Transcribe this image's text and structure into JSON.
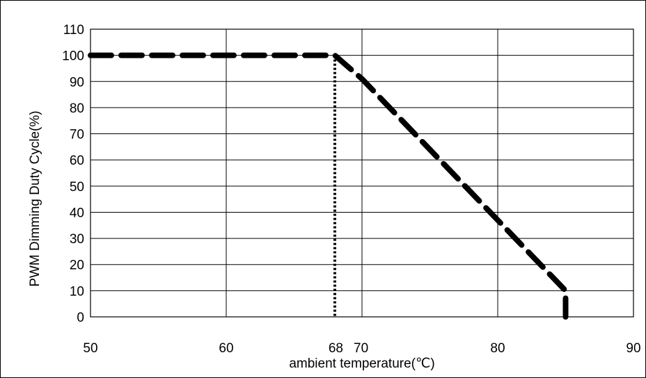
{
  "chart_data": {
    "type": "line",
    "title": "",
    "xlabel": "ambient temperature(℃)",
    "ylabel": "PWM Dimming Duty Cycle(%)",
    "xlim": [
      50,
      90
    ],
    "ylim": [
      0,
      110
    ],
    "x_ticks": [
      50,
      60,
      68,
      70,
      80,
      90
    ],
    "x_gridlines": [
      50,
      60,
      70,
      80,
      90
    ],
    "y_ticks": [
      0,
      10,
      20,
      30,
      40,
      50,
      60,
      70,
      80,
      90,
      100,
      110
    ],
    "grid": true,
    "legend": "none",
    "series": [
      {
        "style": "dashed",
        "color": "#000000",
        "points": [
          [
            50,
            100
          ],
          [
            68,
            100
          ],
          [
            70,
            91
          ],
          [
            85,
            10
          ],
          [
            85,
            0
          ]
        ]
      }
    ],
    "reference_lines": [
      {
        "style": "dotted",
        "color": "#000000",
        "x": 68,
        "y_from": 0,
        "y_to": 100
      }
    ]
  }
}
